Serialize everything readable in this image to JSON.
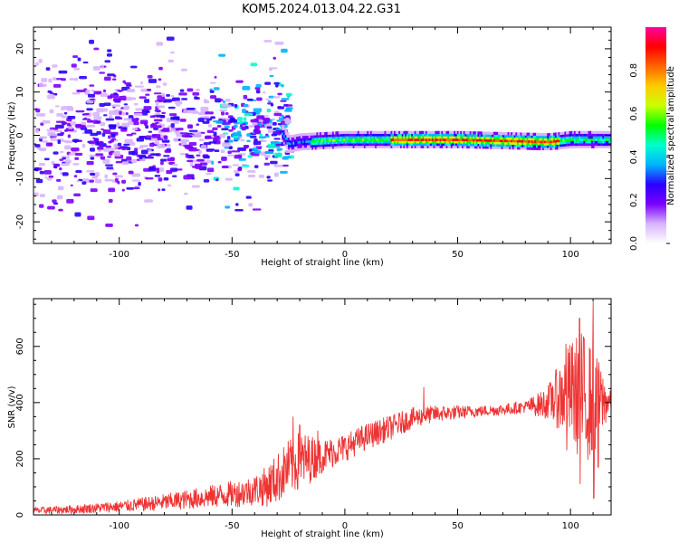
{
  "title": "KOM5.2024.013.04.22.G31",
  "chart_data": [
    {
      "type": "heatmap",
      "xlabel": "Height of straight line (km)",
      "ylabel": "Frequency (Hz)",
      "xlim": [
        -138,
        118
      ],
      "ylim": [
        -25,
        25
      ],
      "x_ticks": [
        -100,
        -50,
        0,
        50,
        100
      ],
      "y_ticks": [
        -20,
        -10,
        0,
        10,
        20
      ],
      "colorbar": {
        "label": "Normalized spectral amplitude",
        "range": [
          0,
          1
        ],
        "ticks": [
          0.0,
          0.2,
          0.4,
          0.6,
          0.8
        ],
        "colors": [
          "#ffffff",
          "#d8b4fe",
          "#7b00ff",
          "#2a00ff",
          "#00b4ff",
          "#00ffcc",
          "#00ff00",
          "#c8ff00",
          "#ffcc00",
          "#ff6600",
          "#ff0000",
          "#ff00a0"
        ]
      },
      "features": {
        "scatter_region_x": [
          -138,
          -25
        ],
        "scatter_region_freq": [
          -22,
          24
        ],
        "band_center_freq": [
          [
            -60,
            1
          ],
          [
            -50,
            2
          ],
          [
            -40,
            3
          ],
          [
            -30,
            2
          ],
          [
            -25,
            -2
          ],
          [
            -20,
            -1.5
          ],
          [
            0,
            -1
          ],
          [
            50,
            -1
          ],
          [
            90,
            -1.5
          ],
          [
            100,
            -1
          ],
          [
            115,
            -1
          ]
        ],
        "peak_amplitude_region_x": [
          20,
          95
        ]
      },
      "grid": false
    },
    {
      "type": "line",
      "xlabel": "Height of straight line (km)",
      "ylabel": "SNR (v/v)",
      "xlim": [
        -138,
        118
      ],
      "ylim": [
        0,
        770
      ],
      "x_ticks": [
        -100,
        -50,
        0,
        50,
        100
      ],
      "y_ticks": [
        0,
        200,
        400,
        600
      ],
      "color": "#ee3333",
      "trend": [
        [
          -138,
          15
        ],
        [
          -120,
          20
        ],
        [
          -100,
          30
        ],
        [
          -80,
          45
        ],
        [
          -60,
          65
        ],
        [
          -45,
          80
        ],
        [
          -35,
          100
        ],
        [
          -30,
          130
        ],
        [
          -25,
          170
        ],
        [
          -20,
          190
        ],
        [
          -10,
          210
        ],
        [
          0,
          240
        ],
        [
          10,
          280
        ],
        [
          20,
          310
        ],
        [
          30,
          345
        ],
        [
          40,
          360
        ],
        [
          50,
          365
        ],
        [
          60,
          370
        ],
        [
          70,
          375
        ],
        [
          80,
          385
        ],
        [
          88,
          395
        ],
        [
          95,
          420
        ],
        [
          100,
          440
        ],
        [
          105,
          420
        ],
        [
          110,
          400
        ],
        [
          118,
          405
        ]
      ],
      "noise_envelope": [
        [
          -138,
          12
        ],
        [
          -100,
          20
        ],
        [
          -60,
          40
        ],
        [
          -40,
          55
        ],
        [
          -30,
          90
        ],
        [
          -20,
          110
        ],
        [
          -10,
          60
        ],
        [
          0,
          50
        ],
        [
          20,
          45
        ],
        [
          40,
          30
        ],
        [
          60,
          20
        ],
        [
          80,
          22
        ],
        [
          90,
          60
        ],
        [
          95,
          120
        ],
        [
          100,
          180
        ],
        [
          105,
          240
        ],
        [
          110,
          200
        ],
        [
          114,
          120
        ],
        [
          118,
          30
        ]
      ],
      "peaks": [
        [
          -23,
          350
        ],
        [
          -20,
          320
        ],
        [
          -12,
          300
        ],
        [
          35,
          455
        ],
        [
          92,
          460
        ],
        [
          98,
          610
        ],
        [
          104,
          700
        ],
        [
          110,
          760
        ],
        [
          112,
          510
        ]
      ],
      "troughs": [
        [
          98,
          230
        ],
        [
          104,
          110
        ],
        [
          110,
          60
        ],
        [
          112,
          170
        ]
      ],
      "grid": false
    }
  ]
}
